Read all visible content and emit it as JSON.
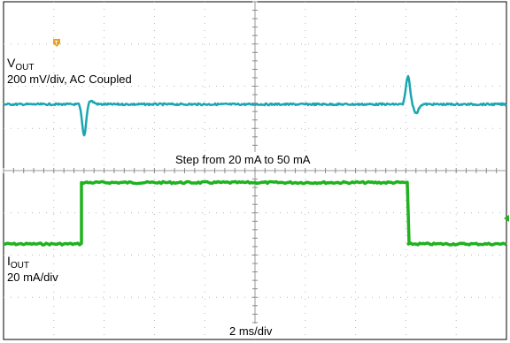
{
  "chart_data": {
    "type": "line",
    "traces": {
      "vout": {
        "label_main": "V",
        "label_sub": "OUT",
        "scale": "200 mV/div, AC Coupled",
        "color": "#1aa6b0"
      },
      "iout": {
        "label_main": "I",
        "label_sub": "OUT",
        "scale": "20 mA/div",
        "color": "#1fb21f"
      }
    },
    "annotation": "Step from 20 mA to 50 mA",
    "timebase": "2 ms/div",
    "divisions": {
      "x": 10,
      "y": 8
    },
    "current_step": {
      "low_mA": 20,
      "high_mA": 50,
      "rise_div": 1.55,
      "fall_div": 8.05
    },
    "grid": true,
    "trigger_marker_color": "#e6a020",
    "level_marker_color": "#1fb21f"
  }
}
